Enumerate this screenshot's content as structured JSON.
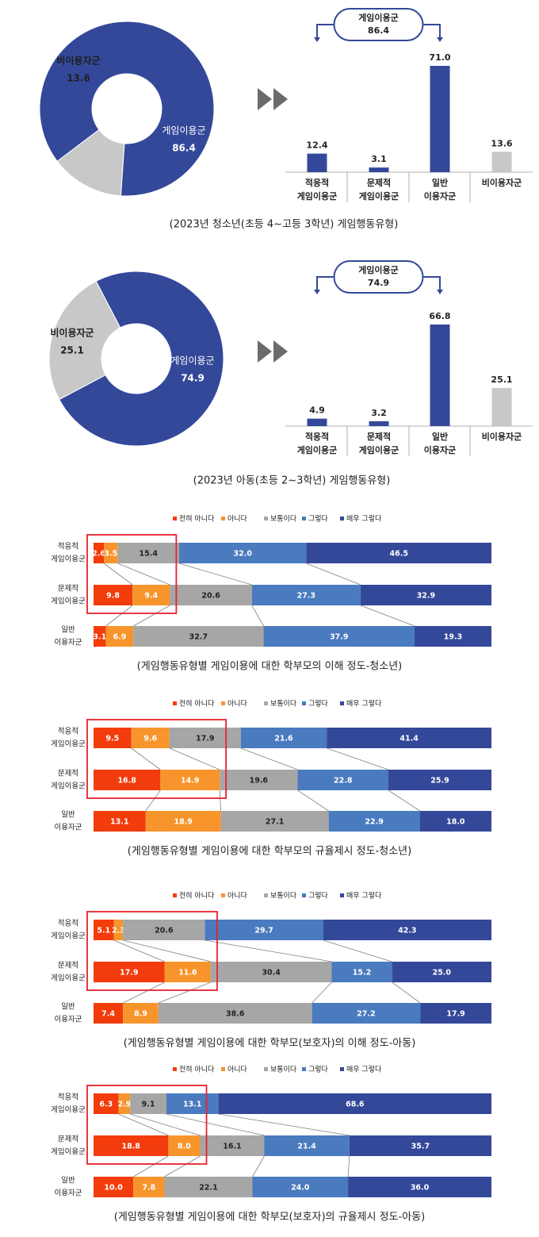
{
  "colors": {
    "dark_blue": "#34489a",
    "gray": "#c8c8c8",
    "s1": "#f23c0c",
    "s2": "#f7952c",
    "s3": "#a6a6a6",
    "s4": "#4a7bbf",
    "s5": "#34489a",
    "highlight": "#e8212c",
    "arrow": "#6b6b6b"
  },
  "section1": {
    "pie": {
      "type": "pie",
      "slices": [
        {
          "label": "게임이용군",
          "value": 86.4,
          "value_text": "86.4"
        },
        {
          "label": "비이용자군",
          "value": 13.6,
          "value_text": "13.6"
        }
      ]
    },
    "bar": {
      "type": "bar",
      "bracket_label": "게임이용군",
      "bracket_value": "86.4",
      "categories": [
        {
          "line1": "적응적",
          "line2": "게임이용군"
        },
        {
          "line1": "문제적",
          "line2": "게임이용군"
        },
        {
          "line1": "일반",
          "line2": "이용자군"
        },
        {
          "line1": "비이용자군",
          "line2": ""
        }
      ],
      "values": [
        12.4,
        3.1,
        71.0,
        13.6
      ],
      "value_labels": [
        "12.4",
        "3.1",
        "71.0",
        "13.6"
      ],
      "ylim": [
        0,
        71.0
      ]
    },
    "caption": "(2023년 청소년(초등 4~고등 3학년) 게임행동유형)"
  },
  "section2": {
    "pie": {
      "type": "pie",
      "slices": [
        {
          "label": "게임이용군",
          "value": 74.9,
          "value_text": "74.9"
        },
        {
          "label": "비이용자군",
          "value": 25.1,
          "value_text": "25.1"
        }
      ]
    },
    "bar": {
      "type": "bar",
      "bracket_label": "게임이용군",
      "bracket_value": "74.9",
      "categories": [
        {
          "line1": "적응적",
          "line2": "게임이용군"
        },
        {
          "line1": "문제적",
          "line2": "게임이용군"
        },
        {
          "line1": "일반",
          "line2": "이용자군"
        },
        {
          "line1": "비이용자군",
          "line2": ""
        }
      ],
      "values": [
        4.9,
        3.2,
        66.8,
        25.1
      ],
      "value_labels": [
        "4.9",
        "3.2",
        "66.8",
        "25.1"
      ],
      "ylim": [
        0,
        66.8
      ]
    },
    "caption": "(2023년 아동(초등 2~3학년) 게임행동유형)"
  },
  "legend": [
    "전혀 아니다",
    "아니다",
    "보통이다",
    "그렇다",
    "매우 그렇다"
  ],
  "stacked_charts": [
    {
      "type": "bar",
      "stacked": true,
      "horizontal": true,
      "rows": [
        {
          "line1": "적응적",
          "line2": "게임이용군",
          "values": [
            2.6,
            3.5,
            15.4,
            32.0,
            46.5
          ],
          "labels": [
            "2.6",
            "3.5",
            "15.4",
            "32.0",
            "46.5"
          ]
        },
        {
          "line1": "문제적",
          "line2": "게임이용군",
          "values": [
            9.8,
            9.4,
            20.6,
            27.3,
            32.9
          ],
          "labels": [
            "9.8",
            "9.4",
            "20.6",
            "27.3",
            "32.9"
          ]
        },
        {
          "line1": "일반",
          "line2": "이용자군",
          "values": [
            3.1,
            6.9,
            32.7,
            37.9,
            19.3
          ],
          "labels": [
            "3.1",
            "6.9",
            "32.7",
            "37.9",
            "19.3"
          ]
        }
      ],
      "caption": "(게임행동유형별 게임이용에 대한 학부모의 이해 정도-청소년)"
    },
    {
      "type": "bar",
      "stacked": true,
      "horizontal": true,
      "rows": [
        {
          "line1": "적응적",
          "line2": "게임이용군",
          "values": [
            9.5,
            9.6,
            17.9,
            21.6,
            41.4
          ],
          "labels": [
            "9.5",
            "9.6",
            "17.9",
            "21.6",
            "41.4"
          ]
        },
        {
          "line1": "문제적",
          "line2": "게임이용군",
          "values": [
            16.8,
            14.9,
            19.6,
            22.8,
            25.9
          ],
          "labels": [
            "16.8",
            "14.9",
            "19.6",
            "22.8",
            "25.9"
          ]
        },
        {
          "line1": "일반",
          "line2": "이용자군",
          "values": [
            13.1,
            18.9,
            27.1,
            22.9,
            18.0
          ],
          "labels": [
            "13.1",
            "18.9",
            "27.1",
            "22.9",
            "18.0"
          ]
        }
      ],
      "caption": "(게임행동유형별 게임이용에 대한 학부모의 규율제시 정도-청소년)"
    },
    {
      "type": "bar",
      "stacked": true,
      "horizontal": true,
      "rows": [
        {
          "line1": "적응적",
          "line2": "게임이용군",
          "values": [
            5.1,
            2.3,
            20.6,
            29.7,
            42.3
          ],
          "labels": [
            "5.1",
            "2.3",
            "20.6",
            "29.7",
            "42.3"
          ]
        },
        {
          "line1": "문제적",
          "line2": "게임이용군",
          "values": [
            17.9,
            11.6,
            30.4,
            15.2,
            25.0
          ],
          "labels": [
            "17.9",
            "11.6",
            "30.4",
            "15.2",
            "25.0"
          ]
        },
        {
          "line1": "일반",
          "line2": "이용자군",
          "values": [
            7.4,
            8.9,
            38.6,
            27.2,
            17.9
          ],
          "labels": [
            "7.4",
            "8.9",
            "38.6",
            "27.2",
            "17.9"
          ]
        }
      ],
      "caption": "(게임행동유형별 게임이용에 대한 학부모(보호자)의 이해 정도-아동)"
    },
    {
      "type": "bar",
      "stacked": true,
      "horizontal": true,
      "rows": [
        {
          "line1": "적응적",
          "line2": "게임이용군",
          "values": [
            6.3,
            2.9,
            9.1,
            13.1,
            68.6
          ],
          "labels": [
            "6.3",
            "2.9",
            "9.1",
            "13.1",
            "68.6"
          ]
        },
        {
          "line1": "문제적",
          "line2": "게임이용군",
          "values": [
            18.8,
            8.0,
            16.1,
            21.4,
            35.7
          ],
          "labels": [
            "18.8",
            "8.0",
            "16.1",
            "21.4",
            "35.7"
          ]
        },
        {
          "line1": "일반",
          "line2": "이용자군",
          "values": [
            10.0,
            7.8,
            22.1,
            24.0,
            36.0
          ],
          "labels": [
            "10.0",
            "7.8",
            "22.1",
            "24.0",
            "36.0"
          ]
        }
      ],
      "caption": "(게임행동유형별 게임이용에 대한 학부모(보호자)의 규율제시 정도-아동)"
    }
  ]
}
